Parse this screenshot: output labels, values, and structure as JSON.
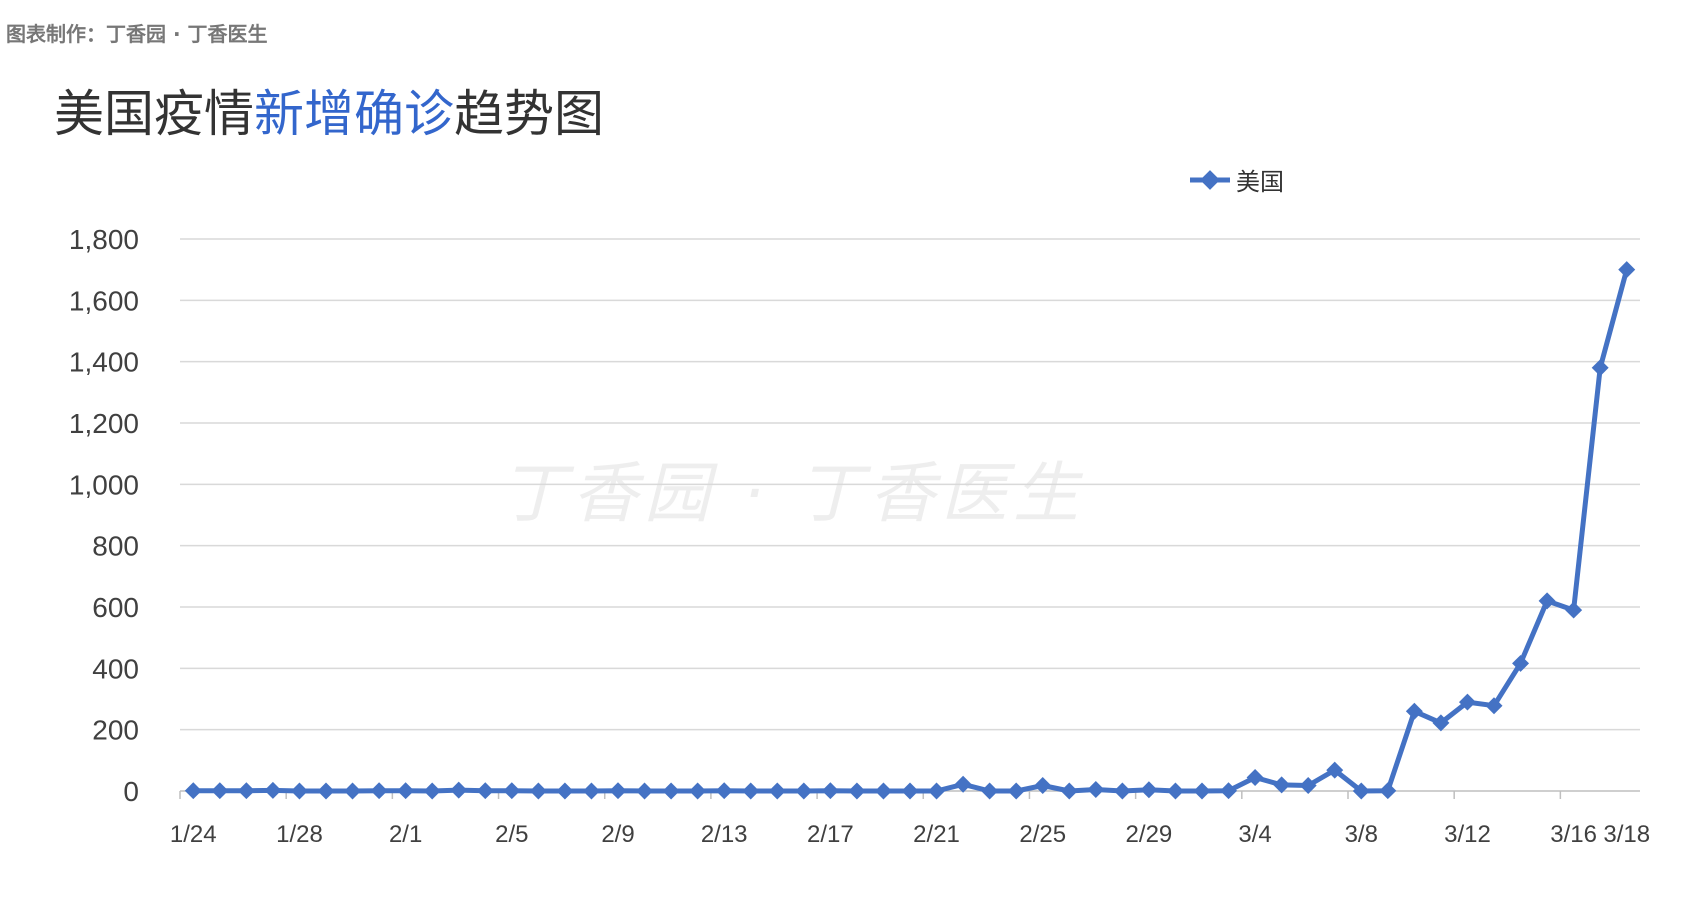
{
  "credit": "图表制作：丁香园 · 丁香医生",
  "title": {
    "part1": "美国疫情",
    "part2": "新增确诊",
    "part3": "趋势图"
  },
  "watermark": "丁香园 · 丁香医生",
  "colors": {
    "series": "#4472c4",
    "title_highlight": "#3366cc",
    "grid": "#d9d9d9"
  },
  "chart_data": {
    "type": "line",
    "title": "美国疫情新增确诊趋势图",
    "legend_position": "top-right",
    "grid": true,
    "ylim": [
      0,
      1800
    ],
    "y_ticks": [
      "0",
      "200",
      "400",
      "600",
      "800",
      "1,000",
      "1,200",
      "1,400",
      "1,600",
      "1,800"
    ],
    "y_tick_values": [
      0,
      200,
      400,
      600,
      800,
      1000,
      1200,
      1400,
      1600,
      1800
    ],
    "categories": [
      "1/24",
      "1/25",
      "1/26",
      "1/27",
      "1/28",
      "1/29",
      "1/30",
      "1/31",
      "2/1",
      "2/2",
      "2/3",
      "2/4",
      "2/5",
      "2/6",
      "2/7",
      "2/8",
      "2/9",
      "2/10",
      "2/11",
      "2/12",
      "2/13",
      "2/14",
      "2/15",
      "2/16",
      "2/17",
      "2/18",
      "2/19",
      "2/20",
      "2/21",
      "2/22",
      "2/23",
      "2/24",
      "2/25",
      "2/26",
      "2/27",
      "2/28",
      "2/29",
      "3/1",
      "3/2",
      "3/3",
      "3/4",
      "3/5",
      "3/6",
      "3/7",
      "3/8",
      "3/9",
      "3/10",
      "3/11",
      "3/12",
      "3/13",
      "3/14",
      "3/15",
      "3/16",
      "3/17",
      "3/18"
    ],
    "x_tick_labels": [
      "1/24",
      "1/28",
      "2/1",
      "2/5",
      "2/9",
      "2/13",
      "2/17",
      "2/21",
      "2/25",
      "2/29",
      "3/4",
      "3/8",
      "3/12",
      "3/16",
      "3/18"
    ],
    "series": [
      {
        "name": "美国",
        "values": [
          1,
          1,
          1,
          2,
          0,
          0,
          0,
          1,
          1,
          0,
          3,
          1,
          1,
          0,
          0,
          0,
          1,
          0,
          0,
          0,
          1,
          0,
          0,
          0,
          1,
          0,
          0,
          0,
          0,
          22,
          0,
          0,
          18,
          0,
          5,
          0,
          4,
          0,
          0,
          1,
          44,
          20,
          18,
          68,
          0,
          1,
          260,
          222,
          290,
          278,
          416,
          620,
          590,
          1380,
          1700
        ]
      }
    ]
  }
}
